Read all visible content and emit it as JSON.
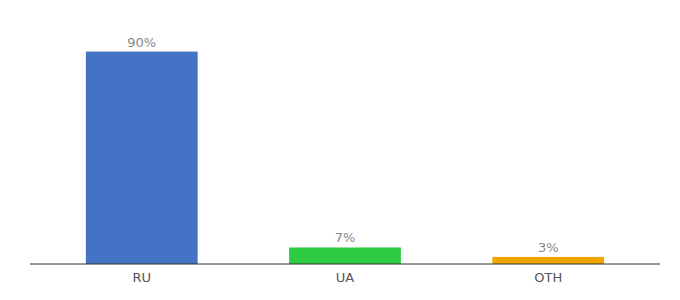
{
  "chart_data": {
    "type": "bar",
    "categories": [
      "RU",
      "UA",
      "OTH"
    ],
    "values": [
      90,
      7,
      3
    ],
    "value_labels": [
      "90%",
      "7%",
      "3%"
    ],
    "colors": [
      "#4472c4",
      "#2ecc40",
      "#f0a500"
    ],
    "ylim": [
      0,
      100
    ],
    "data_labels": true,
    "tick_labels": "x",
    "grid": false
  }
}
